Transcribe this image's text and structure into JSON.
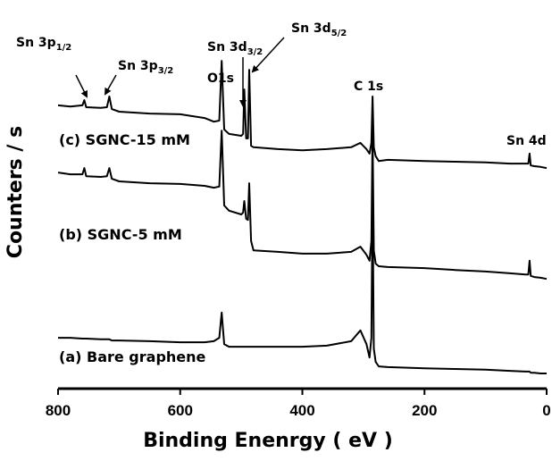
{
  "chart_data": {
    "type": "line",
    "xlabel": "Binding Enenrgy ( eV )",
    "ylabel": "Counters / s",
    "xlim": [
      800,
      0
    ],
    "xticks": [
      800,
      600,
      400,
      200,
      0
    ],
    "ylim": [
      0,
      100
    ],
    "x": [
      800,
      780,
      760,
      757,
      754,
      730,
      720,
      716,
      712,
      700,
      650,
      600,
      560,
      545,
      536,
      532,
      528,
      520,
      500,
      497,
      495,
      492,
      489,
      487,
      484,
      480,
      440,
      400,
      360,
      320,
      305,
      295,
      290,
      287,
      285,
      283,
      280,
      275,
      260,
      200,
      150,
      100,
      60,
      35,
      30,
      28,
      26,
      20,
      10,
      0
    ],
    "series": [
      {
        "name": "(c) SGNC-15 mM",
        "color": "#000000",
        "values": [
          76.4,
          76.1,
          76.4,
          77.8,
          75.9,
          75.7,
          75.9,
          78.8,
          75.4,
          74.7,
          74.2,
          74.0,
          73.0,
          72.0,
          72.3,
          88.4,
          69.9,
          68.7,
          68.2,
          68.7,
          80.7,
          67.5,
          67.5,
          86.0,
          65.5,
          65.1,
          64.6,
          64.3,
          64.6,
          65.1,
          66.3,
          64.6,
          63.4,
          66.3,
          78.8,
          65.1,
          62.7,
          61.4,
          61.7,
          61.4,
          61.2,
          61.0,
          60.7,
          60.7,
          60.7,
          63.4,
          60.2,
          60.0,
          59.8,
          59.5
        ]
      },
      {
        "name": "(b) SGNC-5 mM",
        "color": "#000000",
        "values": [
          58.3,
          57.8,
          57.8,
          59.5,
          57.3,
          57.1,
          57.3,
          59.5,
          56.6,
          55.9,
          55.4,
          55.2,
          54.7,
          54.2,
          54.5,
          69.6,
          49.4,
          48.0,
          47.0,
          47.5,
          50.6,
          45.8,
          45.5,
          55.4,
          39.8,
          37.3,
          36.9,
          36.4,
          36.4,
          36.9,
          38.3,
          36.1,
          34.5,
          39.8,
          69.2,
          37.3,
          33.7,
          33.0,
          32.8,
          32.5,
          32.0,
          31.6,
          31.1,
          30.8,
          30.8,
          34.5,
          30.4,
          30.1,
          29.9,
          29.6
        ]
      },
      {
        "name": "(a) Bare graphene",
        "color": "#000000",
        "values": [
          13.7,
          13.7,
          13.5,
          13.5,
          13.5,
          13.3,
          13.3,
          13.3,
          13.0,
          13.0,
          12.8,
          12.5,
          12.5,
          12.8,
          13.7,
          20.5,
          12.0,
          11.3,
          11.3,
          11.3,
          11.3,
          11.3,
          11.3,
          11.3,
          11.3,
          11.3,
          11.3,
          11.3,
          11.6,
          12.8,
          15.7,
          12.0,
          8.4,
          13.7,
          52.3,
          10.8,
          7.2,
          6.0,
          5.8,
          5.5,
          5.3,
          5.1,
          4.8,
          4.6,
          4.6,
          4.6,
          4.3,
          4.3,
          4.1,
          4.1
        ]
      }
    ],
    "annotations": [
      {
        "text": "Sn 3p",
        "sub": "1/2"
      },
      {
        "text": "Sn 3p",
        "sub": "3/2"
      },
      {
        "text": "O1s"
      },
      {
        "text": "Sn 3d",
        "sub": "3/2"
      },
      {
        "text": "Sn 3d",
        "sub": "5/2"
      },
      {
        "text": "C 1s"
      },
      {
        "text": "Sn 4d"
      }
    ]
  }
}
